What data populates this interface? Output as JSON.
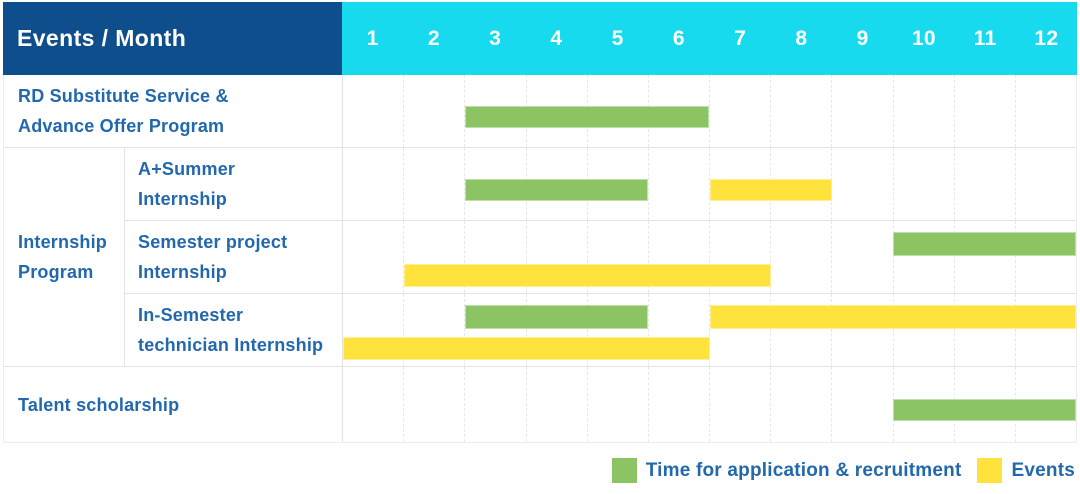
{
  "header": {
    "corner_label": "Events / Month",
    "months": [
      "1",
      "2",
      "3",
      "4",
      "5",
      "6",
      "7",
      "8",
      "9",
      "10",
      "11",
      "12"
    ]
  },
  "colors": {
    "corner_bg": "#0f4e8c",
    "months_bg": "#17daee",
    "label_text": "#2268ad",
    "grid_line": "#e3e3e3",
    "application_green": "#8cc464",
    "events_yellow": "#ffe33c"
  },
  "chart_data": {
    "type": "bar",
    "subtype": "gantt",
    "title": "Events / Month",
    "x_axis": {
      "unit": "month",
      "ticks": [
        "1",
        "2",
        "3",
        "4",
        "5",
        "6",
        "7",
        "8",
        "9",
        "10",
        "11",
        "12"
      ],
      "range": [
        1,
        12
      ]
    },
    "legend_position": "bottom-right",
    "grid": true,
    "legend": [
      {
        "label": "Time for application & recruitment",
        "color": "#8cc464"
      },
      {
        "label": "Events",
        "color": "#ffe33c"
      }
    ],
    "group_cell": {
      "label": "Internship Program",
      "lines": [
        "Internship",
        "Program"
      ],
      "spans_rows": [
        1,
        3
      ]
    },
    "rows": [
      {
        "label": "RD Substitute Service & Advance Offer Program",
        "lines": [
          "RD Substitute Service &",
          "Advance Offer Program"
        ],
        "group": null,
        "bars": [
          {
            "series": "Time for application & recruitment",
            "start_month": 3,
            "end_month": 6,
            "lane": "single"
          }
        ]
      },
      {
        "label": "A+Summer Internship",
        "lines": [
          "A+Summer",
          "Internship"
        ],
        "group": "Internship Program",
        "bars": [
          {
            "series": "Time for application & recruitment",
            "start_month": 3,
            "end_month": 5,
            "lane": "single"
          },
          {
            "series": "Events",
            "start_month": 7,
            "end_month": 8,
            "lane": "single"
          }
        ]
      },
      {
        "label": "Semester project Internship",
        "lines": [
          "Semester project",
          "Internship"
        ],
        "group": "Internship Program",
        "bars": [
          {
            "series": "Time for application & recruitment",
            "start_month": 10,
            "end_month": 12,
            "lane": "top"
          },
          {
            "series": "Events",
            "start_month": 2,
            "end_month": 7,
            "lane": "bottom"
          }
        ]
      },
      {
        "label": "In-Semester technician Internship",
        "lines": [
          "In-Semester",
          "technician Internship"
        ],
        "group": "Internship Program",
        "bars": [
          {
            "series": "Time for application & recruitment",
            "start_month": 3,
            "end_month": 5,
            "lane": "top"
          },
          {
            "series": "Events",
            "start_month": 7,
            "end_month": 12,
            "lane": "top"
          },
          {
            "series": "Events",
            "start_month": 1,
            "end_month": 6,
            "lane": "bottom"
          }
        ]
      },
      {
        "label": "Talent scholarship",
        "lines": [
          "Talent scholarship"
        ],
        "group": null,
        "bars": [
          {
            "series": "Time for application & recruitment",
            "start_month": 10,
            "end_month": 12,
            "lane": "single"
          }
        ]
      }
    ]
  }
}
